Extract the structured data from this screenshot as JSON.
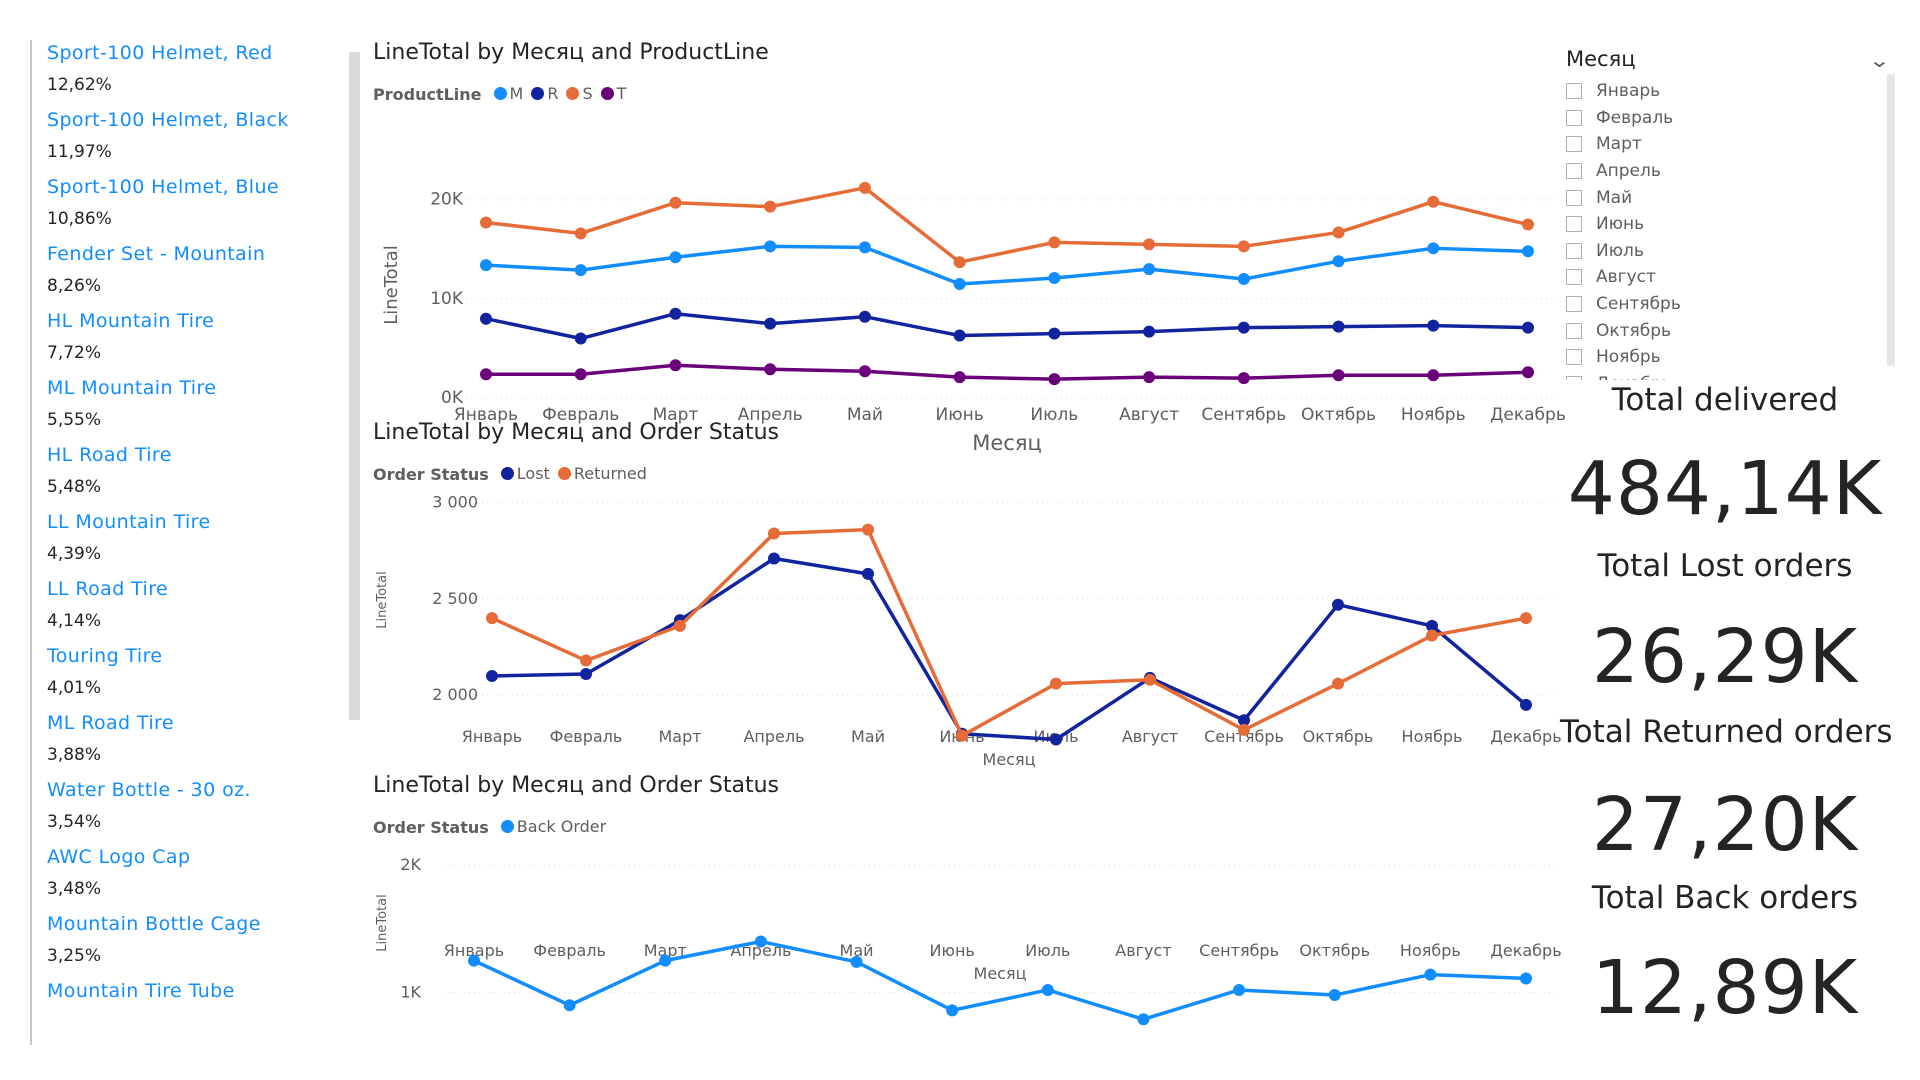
{
  "products": [
    {
      "name": "Sport-100 Helmet, Red",
      "pct": "12,62%"
    },
    {
      "name": "Sport-100 Helmet, Black",
      "pct": "11,97%"
    },
    {
      "name": "Sport-100 Helmet, Blue",
      "pct": "10,86%"
    },
    {
      "name": "Fender Set - Mountain",
      "pct": "8,26%"
    },
    {
      "name": "HL Mountain Tire",
      "pct": "7,72%"
    },
    {
      "name": "ML Mountain Tire",
      "pct": "5,55%"
    },
    {
      "name": "HL Road Tire",
      "pct": "5,48%"
    },
    {
      "name": "LL Mountain Tire",
      "pct": "4,39%"
    },
    {
      "name": "LL Road Tire",
      "pct": "4,14%"
    },
    {
      "name": "Touring Tire",
      "pct": "4,01%"
    },
    {
      "name": "ML Road Tire",
      "pct": "3,88%"
    },
    {
      "name": "Water Bottle - 30 oz.",
      "pct": "3,54%"
    },
    {
      "name": "AWC Logo Cap",
      "pct": "3,48%"
    },
    {
      "name": "Mountain Bottle Cage",
      "pct": "3,25%"
    },
    {
      "name": "Mountain Tire Tube",
      "pct": ""
    }
  ],
  "chart_data": [
    {
      "type": "line",
      "title": "LineTotal by Месяц and ProductLine",
      "legend_title": "ProductLine",
      "xlabel": "Месяц",
      "ylabel": "LineTotal",
      "ylim": [
        0,
        23000
      ],
      "yticks": [
        {
          "v": 0,
          "label": "0K"
        },
        {
          "v": 10000,
          "label": "10K"
        },
        {
          "v": 20000,
          "label": "20K"
        }
      ],
      "categories": [
        "Январь",
        "Февраль",
        "Март",
        "Апрель",
        "Май",
        "Июнь",
        "Июль",
        "Август",
        "Сентябрь",
        "Октябрь",
        "Ноябрь",
        "Декабрь"
      ],
      "series": [
        {
          "name": "M",
          "color": "#118dff",
          "values": [
            13400,
            12900,
            14200,
            15300,
            15200,
            11500,
            12100,
            13000,
            12000,
            13800,
            15100,
            14800
          ]
        },
        {
          "name": "R",
          "color": "#12239e",
          "values": [
            8000,
            6000,
            8500,
            7500,
            8200,
            6300,
            6500,
            6700,
            7100,
            7200,
            7300,
            7100
          ]
        },
        {
          "name": "S",
          "color": "#e66c37",
          "values": [
            17700,
            16600,
            19700,
            19300,
            21200,
            13700,
            15700,
            15500,
            15300,
            16700,
            19800,
            17500
          ]
        },
        {
          "name": "T",
          "color": "#6b007b",
          "values": [
            2400,
            2400,
            3300,
            2900,
            2700,
            2100,
            1900,
            2100,
            2000,
            2300,
            2300,
            2600
          ]
        }
      ]
    },
    {
      "type": "line",
      "title": "LineTotal by Месяц and Order Status",
      "legend_title": "Order Status",
      "xlabel": "Месяц",
      "ylabel": "LineTotal",
      "ylim": [
        1700,
        3050
      ],
      "yticks": [
        {
          "v": 2000,
          "label": "2 000"
        },
        {
          "v": 2500,
          "label": "2 500"
        },
        {
          "v": 3000,
          "label": "3 000"
        }
      ],
      "categories": [
        "Январь",
        "Февраль",
        "Март",
        "Апрель",
        "Май",
        "Июнь",
        "Июль",
        "Август",
        "Сентябрь",
        "Октябрь",
        "Ноябрь",
        "Декабрь"
      ],
      "series": [
        {
          "name": "Lost",
          "color": "#12239e",
          "values": [
            2100,
            2110,
            2390,
            2710,
            2630,
            1800,
            1770,
            2090,
            1870,
            2470,
            2360,
            1950
          ]
        },
        {
          "name": "Returned",
          "color": "#e66c37",
          "values": [
            2400,
            2180,
            2360,
            2840,
            2860,
            1790,
            2060,
            2080,
            1820,
            2060,
            2310,
            2400
          ]
        }
      ]
    },
    {
      "type": "line",
      "title": "LineTotal by Месяц and Order Status",
      "legend_title": "Order Status",
      "xlabel": "Месяц",
      "ylabel": "LineTotal",
      "ylim": [
        800,
        2000
      ],
      "yticks": [
        {
          "v": 1000,
          "label": "1K"
        },
        {
          "v": 2000,
          "label": "2K"
        }
      ],
      "categories": [
        "Январь",
        "Февраль",
        "Март",
        "Апрель",
        "Май",
        "Июнь",
        "Июль",
        "Август",
        "Сентябрь",
        "Октябрь",
        "Ноябрь",
        "Декабрь"
      ],
      "series": [
        {
          "name": "Back Order",
          "color": "#118dff",
          "values": [
            1250,
            900,
            1250,
            1400,
            1240,
            860,
            1020,
            790,
            1020,
            980,
            1140,
            1110
          ]
        }
      ]
    }
  ],
  "slicer": {
    "title": "Месяц",
    "items": [
      "Январь",
      "Февраль",
      "Март",
      "Апрель",
      "Май",
      "Июнь",
      "Июль",
      "Август",
      "Сентябрь",
      "Октябрь",
      "Ноябрь",
      "Декабрь"
    ]
  },
  "kpis": [
    {
      "label": "Total delivered",
      "value": "484,14K"
    },
    {
      "label": "Total Lost orders",
      "value": "26,29K"
    },
    {
      "label": "Total Returned orders",
      "value": "27,20K"
    },
    {
      "label": "Total Back orders",
      "value": "12,89K"
    }
  ]
}
